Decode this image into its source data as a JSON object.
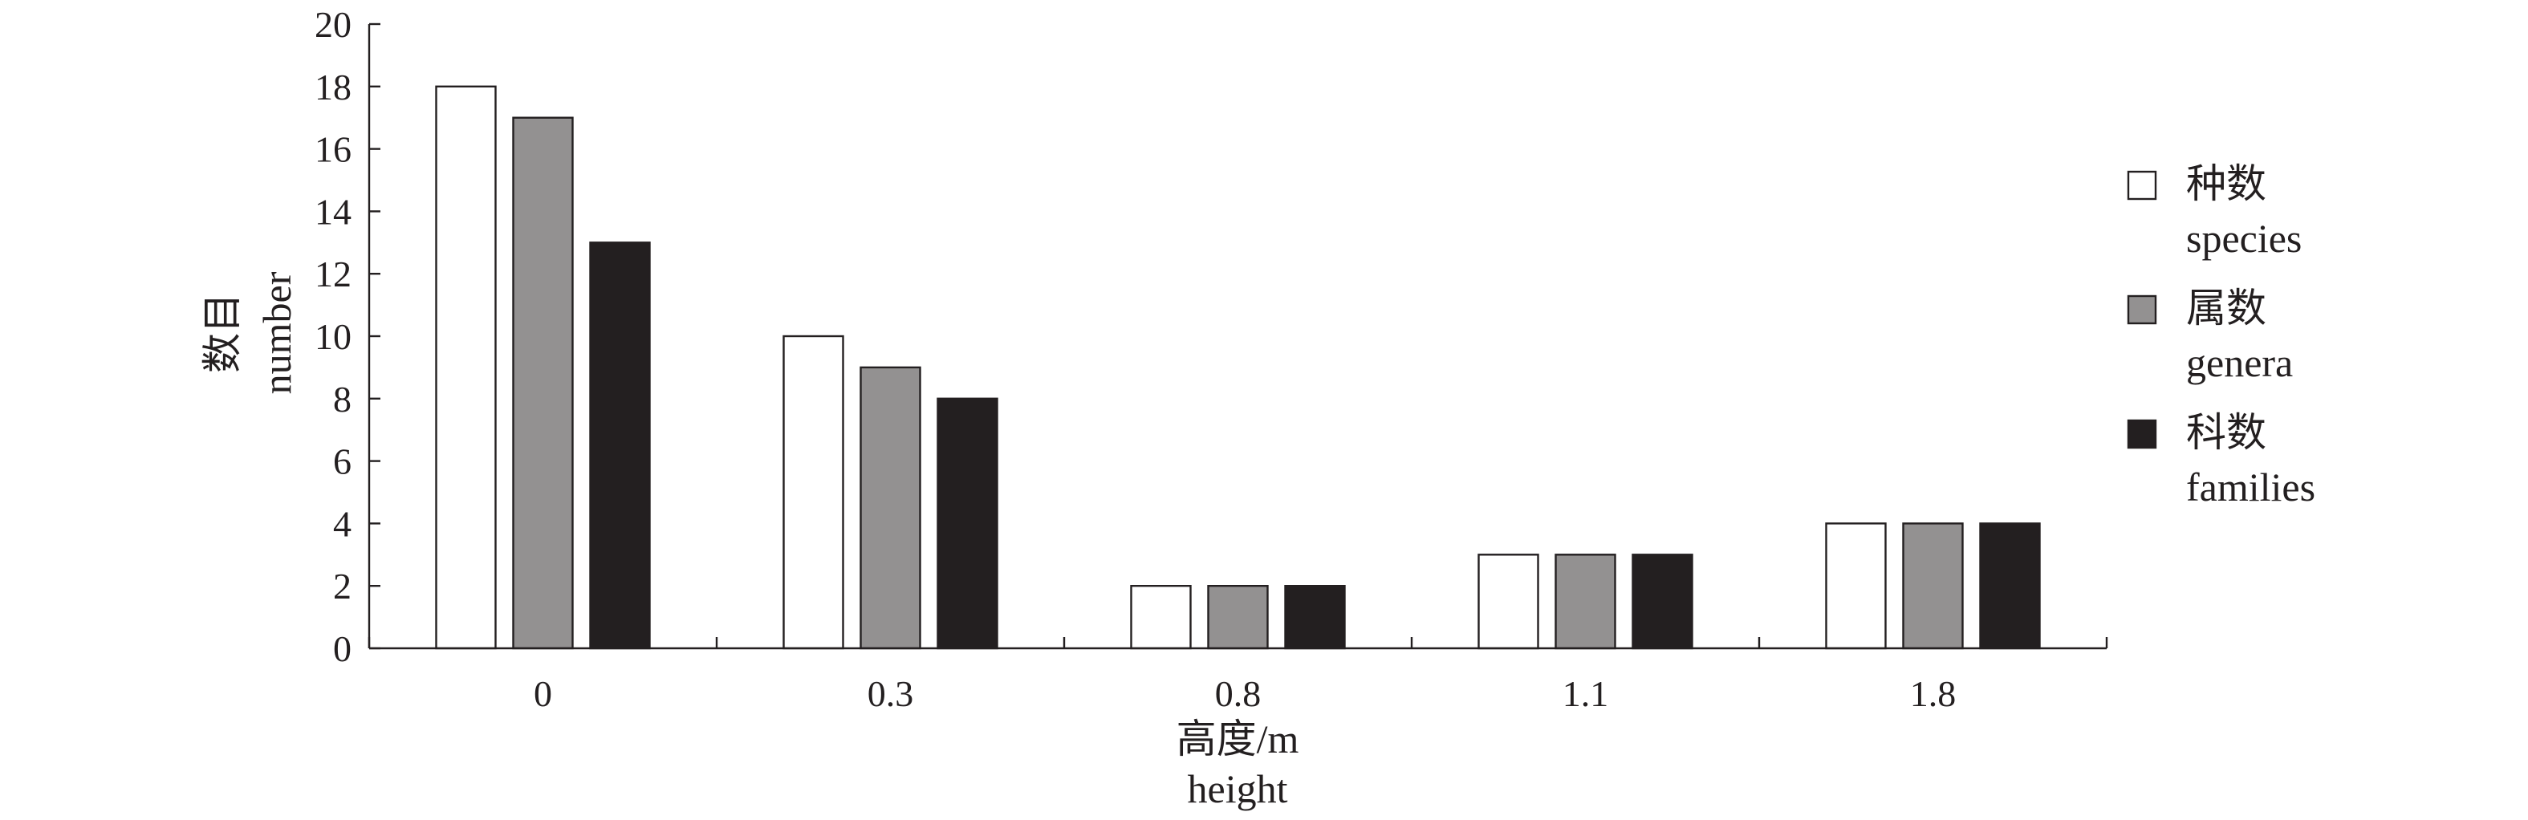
{
  "chart_data": {
    "type": "bar",
    "categories": [
      "0",
      "0.3",
      "0.8",
      "1.1",
      "1.8"
    ],
    "series": [
      {
        "name": "种数",
        "name_en": "species",
        "color": "#ffffff",
        "values": [
          18,
          10,
          2,
          3,
          4
        ]
      },
      {
        "name": "属数",
        "name_en": "genera",
        "color": "#939191",
        "values": [
          17,
          9,
          2,
          3,
          4
        ]
      },
      {
        "name": "科数",
        "name_en": "families",
        "color": "#231f20",
        "values": [
          13,
          8,
          2,
          3,
          4
        ]
      }
    ],
    "xlabel": "高度/m",
    "xlabel_en": "height",
    "ylabel": "数目",
    "ylabel_en": "number",
    "ylim": [
      0,
      20
    ],
    "yticks": [
      "0",
      "2",
      "4",
      "6",
      "8",
      "10",
      "12",
      "14",
      "16",
      "18",
      "20"
    ],
    "grid": false,
    "legend_position": "right"
  }
}
